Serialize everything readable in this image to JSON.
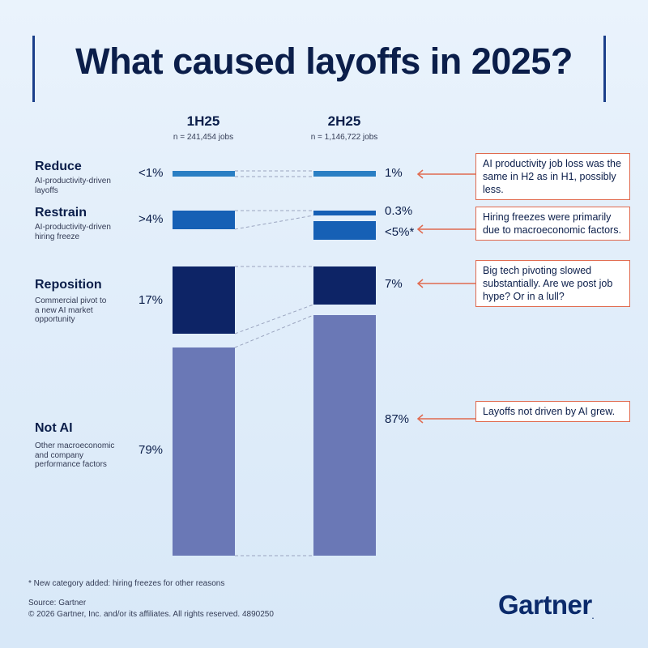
{
  "title": "What caused layoffs in 2025?",
  "columns": [
    {
      "label": "1H25",
      "n": "n = 241,454 jobs"
    },
    {
      "label": "2H25",
      "n": "n = 1,146,722 jobs"
    }
  ],
  "categories": [
    {
      "title": "Reduce",
      "desc": "AI-productivity-driven layoffs",
      "label_1h": "<1%",
      "label_2h": "1%"
    },
    {
      "title": "Restrain",
      "desc": "AI-productivity-driven hiring freeze",
      "label_1h": ">4%",
      "label_2h": "0.3%",
      "label_2h_extra": "<5%*"
    },
    {
      "title": "Reposition",
      "desc": "Commercial pivot to a new AI market opportunity",
      "label_1h": "17%",
      "label_2h": "7%"
    },
    {
      "title": "Not AI",
      "desc": "Other macroeconomic and company performance factors",
      "label_1h": "79%",
      "label_2h": "87%"
    }
  ],
  "callouts": [
    "AI productivity job loss was the same in H2 as in H1, possibly less.",
    "Hiring freezes were primarily due to macroeconomic factors.",
    "Big tech pivoting slowed substantially. Are we post job hype? Or in a lull?",
    "Layoffs not driven by AI grew."
  ],
  "footnote": "* New category added: hiring freezes for other reasons",
  "source": "Source: Gartner",
  "copyright": "© 2026 Gartner, Inc. and/or its affiliates. All rights reserved. 4890250",
  "brand": "Gartner",
  "colors": {
    "accent": "#1b3f8a",
    "reduce": "#2a7fc4",
    "restrain": "#1660b5",
    "reposition": "#0d2466",
    "not_ai": "#6a78b6",
    "callout_border": "#e06a4f"
  },
  "chart_data": {
    "type": "bar",
    "stacked": true,
    "categories": [
      "1H25",
      "2H25"
    ],
    "series": [
      {
        "name": "Reduce",
        "values": [
          1,
          1
        ]
      },
      {
        "name": "Restrain",
        "values": [
          4,
          0.3
        ]
      },
      {
        "name": "Hiring freeze (other reasons)",
        "values": [
          0,
          5
        ]
      },
      {
        "name": "Reposition",
        "values": [
          17,
          7
        ]
      },
      {
        "name": "Not AI",
        "values": [
          79,
          87
        ]
      }
    ]
  }
}
